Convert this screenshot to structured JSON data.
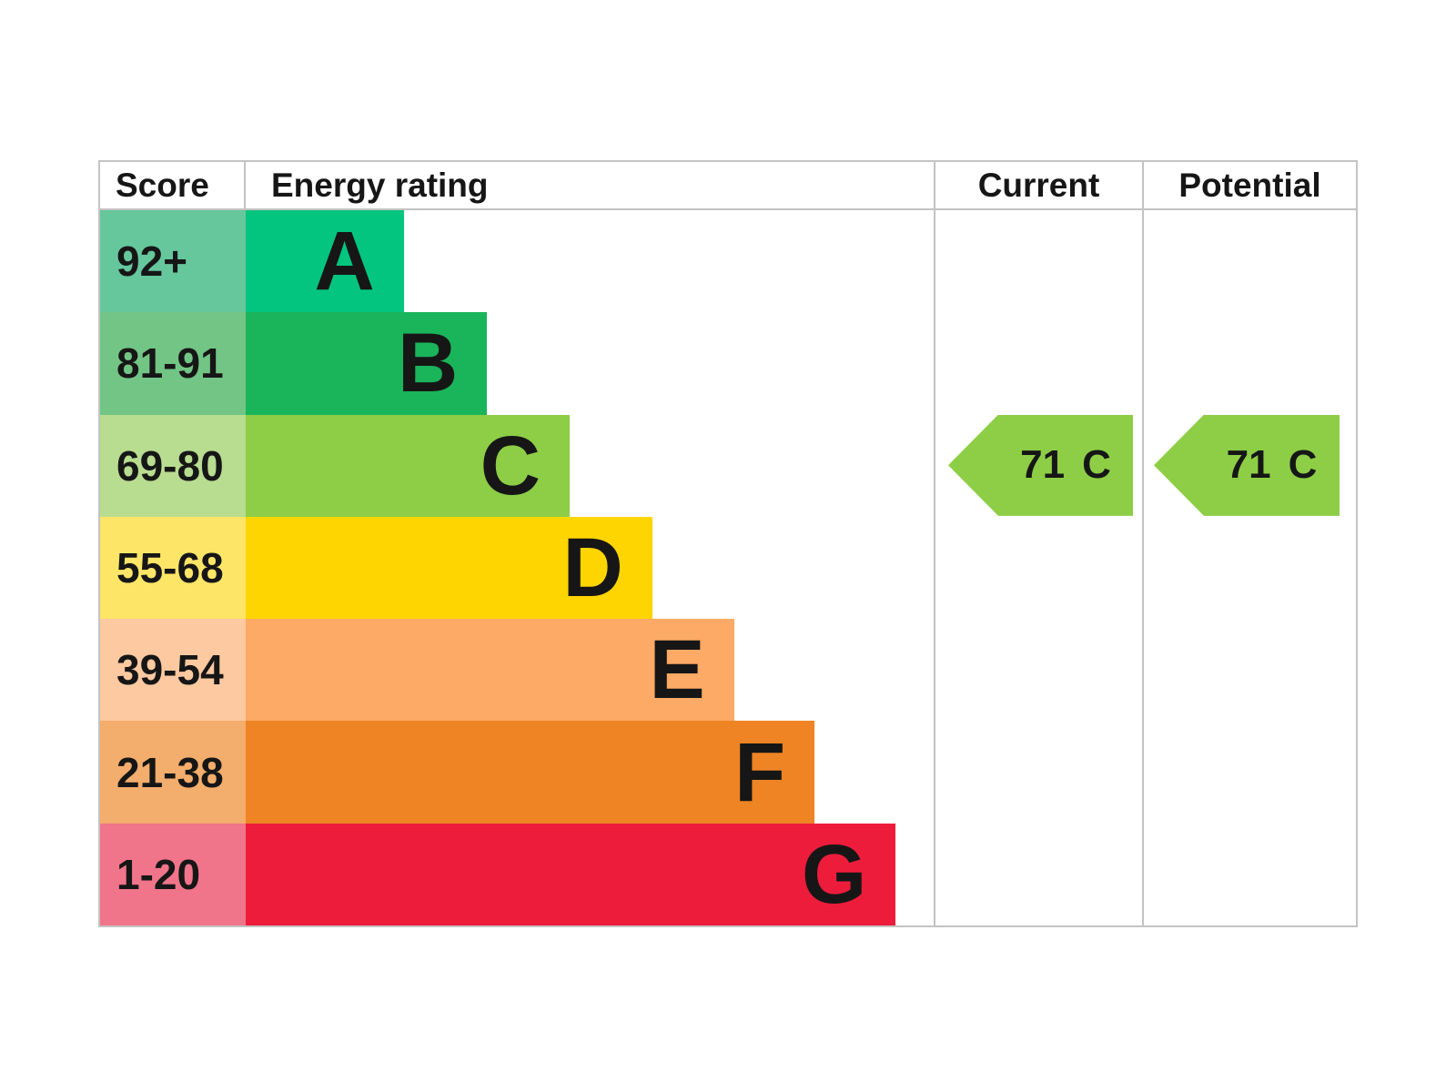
{
  "header": {
    "score": "Score",
    "energy_rating": "Energy rating",
    "current": "Current",
    "potential": "Potential"
  },
  "bands": [
    {
      "score": "92+",
      "letter": "A",
      "bar_color": "#04c57f",
      "score_color": "#66c79d",
      "bar_width_pct": 23.0
    },
    {
      "score": "81-91",
      "letter": "B",
      "bar_color": "#1ab45a",
      "score_color": "#72c585",
      "bar_width_pct": 35.1
    },
    {
      "score": "69-80",
      "letter": "C",
      "bar_color": "#8dce46",
      "score_color": "#b8dc90",
      "bar_width_pct": 47.1
    },
    {
      "score": "55-68",
      "letter": "D",
      "bar_color": "#ffd500",
      "score_color": "#fde567",
      "bar_width_pct": 59.1
    },
    {
      "score": "39-54",
      "letter": "E",
      "bar_color": "#fcaa65",
      "score_color": "#fcc9a0",
      "bar_width_pct": 71.0
    },
    {
      "score": "21-38",
      "letter": "F",
      "bar_color": "#ee8424",
      "score_color": "#f3ad6c",
      "bar_width_pct": 82.7
    },
    {
      "score": "1-20",
      "letter": "G",
      "bar_color": "#ed1c3b",
      "score_color": "#f0748a",
      "bar_width_pct": 94.5
    }
  ],
  "current_rating": {
    "score": "71",
    "band": "C",
    "arrow_color": "#8dce46"
  },
  "potential_rating": {
    "score": "71",
    "band": "C",
    "arrow_color": "#8dce46"
  },
  "colors": {
    "border": "#c3c3c3"
  },
  "chart_data": {
    "type": "bar",
    "title": "EPC energy efficiency rating chart",
    "columns": [
      "Score",
      "Energy rating",
      "Current",
      "Potential"
    ],
    "categories": [
      "A",
      "B",
      "C",
      "D",
      "E",
      "F",
      "G"
    ],
    "score_ranges": [
      "92+",
      "81-91",
      "69-80",
      "55-68",
      "39-54",
      "21-38",
      "1-20"
    ],
    "bar_lengths_pct": [
      23.0,
      35.1,
      47.1,
      59.1,
      71.0,
      82.7,
      94.5
    ],
    "bar_colors": [
      "#04c57f",
      "#1ab45a",
      "#8dce46",
      "#ffd500",
      "#fcaa65",
      "#ee8424",
      "#ed1c3b"
    ],
    "score_cell_colors": [
      "#66c79d",
      "#72c585",
      "#b8dc90",
      "#fde567",
      "#fcc9a0",
      "#f3ad6c",
      "#f0748a"
    ],
    "current": {
      "score": 71,
      "band": "C"
    },
    "potential": {
      "score": 71,
      "band": "C"
    },
    "legend_position": "none",
    "grid": false
  }
}
